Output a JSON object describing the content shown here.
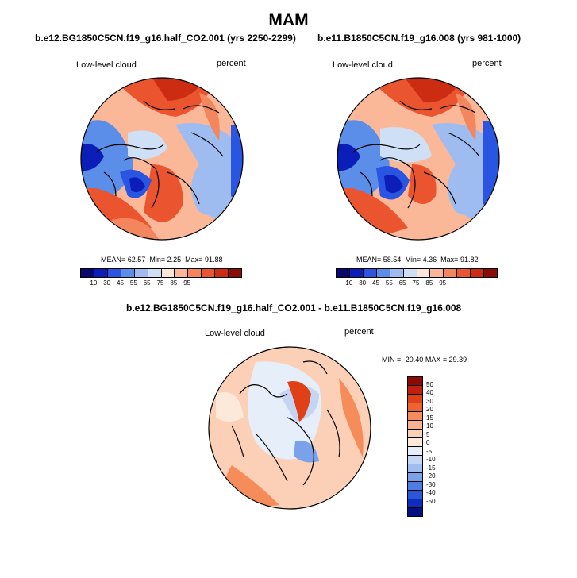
{
  "title": "MAM",
  "colors": {
    "absolute_scale": [
      "#08086e",
      "#0b1fb8",
      "#2a55e2",
      "#5a8ee8",
      "#9ebcf0",
      "#cfe0f6",
      "#fce6d8",
      "#fbb898",
      "#f4865d",
      "#ea5530",
      "#cc2d12",
      "#8a0c05"
    ],
    "diff_scale": [
      "#8a0c05",
      "#c2200d",
      "#e04015",
      "#ef6333",
      "#f58c5a",
      "#f9b390",
      "#fbd0b6",
      "#fde9da",
      "#e6eefa",
      "#c4d6f3",
      "#9fbdee",
      "#7aa2ea",
      "#4f7ce4",
      "#2a56da",
      "#0e2dc0",
      "#050f80"
    ]
  },
  "panels": {
    "left": {
      "title": "b.e12.BG1850C5CN.f19_g16.half_CO2.001 (yrs 2250-2299)",
      "variable": "Low-level cloud",
      "units": "percent",
      "mean_label": "MEAN=",
      "mean": "62.57",
      "min_label": "Min=",
      "min": "2.25",
      "max_label": "Max=",
      "max": "91.88"
    },
    "right": {
      "title": "b.e11.B1850C5CN.f19_g16.008 (yrs 981-1000)",
      "variable": "Low-level cloud",
      "units": "percent",
      "mean_label": "MEAN=",
      "mean": "58.54",
      "min_label": "Min=",
      "min": "4.36",
      "max_label": "Max=",
      "max": "91.82"
    },
    "diff": {
      "title": "b.e12.BG1850C5CN.f19_g16.half_CO2.001 - b.e11.B1850C5CN.f19_g16.008",
      "variable": "Low-level cloud",
      "units": "percent",
      "min_label": "MIN =",
      "min": "-20.40",
      "max_label": "MAX =",
      "max": "29.39"
    }
  },
  "colorbar_ticks": [
    "10",
    "30",
    "45",
    "55",
    "65",
    "75",
    "85",
    "95"
  ],
  "diff_colorbar_ticks": [
    "50",
    "40",
    "30",
    "20",
    "15",
    "10",
    "5",
    "0",
    "-5",
    "-10",
    "-15",
    "-20",
    "-30",
    "-40",
    "-50"
  ]
}
